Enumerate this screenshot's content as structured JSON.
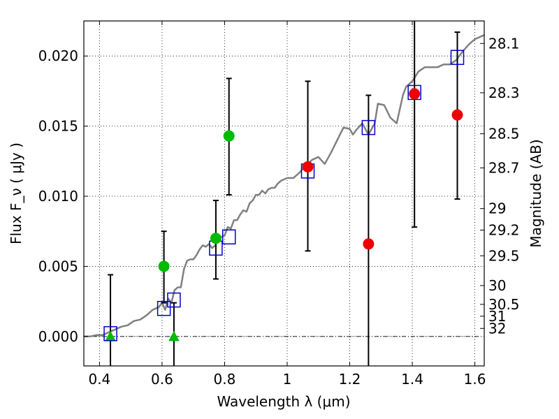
{
  "chart_data": {
    "type": "scatter",
    "xlabel": "Wavelength  λ (μm)",
    "ylabel": "Flux  F_ν  ( μJy )",
    "y2label": "Magnitude (AB)",
    "xlim": [
      0.35,
      1.63
    ],
    "ylim": [
      -0.0021,
      0.0225
    ],
    "xticks": [
      0.4,
      0.6,
      0.8,
      1.0,
      1.2,
      1.4,
      1.6
    ],
    "xtick_labels": [
      "0.4",
      "0.6",
      "0.8",
      "1",
      "1.2",
      "1.4",
      "1.6"
    ],
    "yticks": [
      0.0,
      0.005,
      0.01,
      0.015,
      0.02
    ],
    "ytick_labels": [
      "0.000",
      "0.005",
      "0.010",
      "0.015",
      "0.020"
    ],
    "y2ticks": [
      28.1,
      28.3,
      28.5,
      28.7,
      29,
      29.2,
      29.5,
      30,
      30.5,
      31,
      32
    ],
    "y2tick_labels": [
      "28.1",
      "28.3",
      "28.5",
      "28.7",
      "29",
      "29.2",
      "29.5",
      "30",
      "30.5",
      "31",
      "32"
    ],
    "grid": true,
    "colors": {
      "model": "#808080",
      "model_points": "#0000cc",
      "green": "#00bb00",
      "red": "#ee0000",
      "errorbar": "#000000"
    },
    "model_spectrum": {
      "x": [
        0.35,
        0.37,
        0.39,
        0.41,
        0.43,
        0.45,
        0.47,
        0.49,
        0.51,
        0.53,
        0.55,
        0.57,
        0.59,
        0.6,
        0.61,
        0.62,
        0.63,
        0.64,
        0.65,
        0.66,
        0.67,
        0.68,
        0.69,
        0.7,
        0.71,
        0.72,
        0.73,
        0.74,
        0.75,
        0.76,
        0.77,
        0.78,
        0.79,
        0.8,
        0.81,
        0.82,
        0.83,
        0.84,
        0.85,
        0.86,
        0.87,
        0.88,
        0.89,
        0.9,
        0.91,
        0.92,
        0.93,
        0.94,
        0.95,
        0.96,
        0.97,
        0.98,
        0.99,
        1.0,
        1.02,
        1.04,
        1.06,
        1.08,
        1.1,
        1.12,
        1.14,
        1.16,
        1.18,
        1.2,
        1.21,
        1.22,
        1.24,
        1.26,
        1.28,
        1.29,
        1.31,
        1.33,
        1.35,
        1.37,
        1.38,
        1.4,
        1.42,
        1.44,
        1.46,
        1.48,
        1.5,
        1.52,
        1.54,
        1.56,
        1.58,
        1.6,
        1.63
      ],
      "y": [
        0.0,
        0.0,
        0.0001,
        0.0001,
        0.0003,
        0.0005,
        0.0007,
        0.0008,
        0.0011,
        0.0012,
        0.0015,
        0.0019,
        0.0021,
        0.0024,
        0.0019,
        0.0027,
        0.0024,
        0.0033,
        0.0035,
        0.0035,
        0.0048,
        0.0054,
        0.0055,
        0.0055,
        0.0058,
        0.0062,
        0.0065,
        0.0064,
        0.0066,
        0.0063,
        0.0065,
        0.007,
        0.0071,
        0.0072,
        0.0078,
        0.0077,
        0.0083,
        0.0083,
        0.0087,
        0.009,
        0.0089,
        0.0095,
        0.0097,
        0.0101,
        0.0101,
        0.0104,
        0.0102,
        0.0105,
        0.0106,
        0.0106,
        0.0109,
        0.0111,
        0.0112,
        0.0113,
        0.0113,
        0.0117,
        0.0122,
        0.0126,
        0.0128,
        0.0123,
        0.0131,
        0.014,
        0.0149,
        0.0148,
        0.0144,
        0.0147,
        0.0152,
        0.0144,
        0.0152,
        0.0166,
        0.0165,
        0.0156,
        0.0152,
        0.0172,
        0.0178,
        0.0182,
        0.0189,
        0.0192,
        0.0192,
        0.0192,
        0.0194,
        0.0194,
        0.0197,
        0.0203,
        0.0208,
        0.0212,
        0.0215
      ]
    },
    "model_points": [
      {
        "x": 0.435,
        "y": 0.0002
      },
      {
        "x": 0.606,
        "y": 0.002
      },
      {
        "x": 0.638,
        "y": 0.0026
      },
      {
        "x": 0.772,
        "y": 0.0063
      },
      {
        "x": 0.814,
        "y": 0.0071
      },
      {
        "x": 1.066,
        "y": 0.0118
      },
      {
        "x": 1.26,
        "y": 0.0149
      },
      {
        "x": 1.407,
        "y": 0.0174
      },
      {
        "x": 1.544,
        "y": 0.0199
      }
    ],
    "green_points": [
      {
        "x": 0.606,
        "y": 0.005
      },
      {
        "x": 0.772,
        "y": 0.007
      },
      {
        "x": 0.814,
        "y": 0.0143
      }
    ],
    "green_upper_limits": [
      {
        "x": 0.435,
        "y": 0.0
      },
      {
        "x": 0.638,
        "y": 0.0
      }
    ],
    "red_points": [
      {
        "x": 1.066,
        "y": 0.0121
      },
      {
        "x": 1.26,
        "y": 0.0066
      },
      {
        "x": 1.407,
        "y": 0.0173
      },
      {
        "x": 1.544,
        "y": 0.0158
      }
    ],
    "error_bars": [
      {
        "x": 0.435,
        "low": -0.0025,
        "high": 0.0044
      },
      {
        "x": 0.606,
        "low": 0.0024,
        "high": 0.0075
      },
      {
        "x": 0.638,
        "low": -0.0025,
        "high": 0.0024
      },
      {
        "x": 0.772,
        "low": 0.0041,
        "high": 0.0097
      },
      {
        "x": 0.814,
        "low": 0.0101,
        "high": 0.0184
      },
      {
        "x": 1.066,
        "low": 0.0061,
        "high": 0.0182
      },
      {
        "x": 1.26,
        "low": -0.0025,
        "high": 0.0172
      },
      {
        "x": 1.407,
        "low": 0.0078,
        "high": 0.023
      },
      {
        "x": 1.544,
        "low": 0.0098,
        "high": 0.0217
      }
    ],
    "zero_line": true
  }
}
